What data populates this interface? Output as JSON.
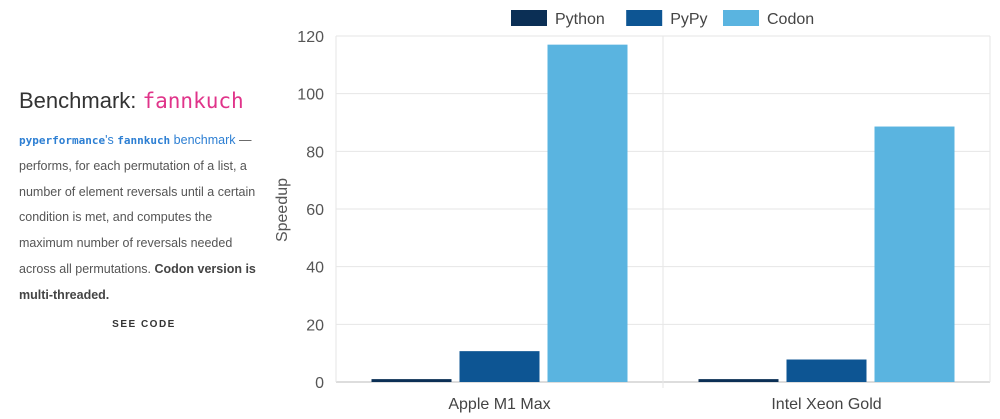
{
  "left_panel": {
    "title_prefix": "Benchmark: ",
    "title_code": "fannkuch",
    "desc_mono1": "pyperformance",
    "desc_text1": "'s ",
    "desc_mono2": "fannkuch",
    "desc_link": " benchmark",
    "desc_body": " — performs, for each permutation of a list, a number of element reversals until a certain condition is met, and computes the maximum number of reversals needed across all permutations. ",
    "desc_bold": "Codon version is multi-threaded.",
    "see_code": "SEE CODE"
  },
  "colors": {
    "Python": "#0b2f55",
    "PyPy": "#0d5593",
    "Codon": "#5ab4e0"
  },
  "chart_data": {
    "type": "bar",
    "title": "",
    "xlabel": "",
    "ylabel": "Speedup",
    "categories": [
      "Apple M1 Max",
      "Intel Xeon Gold"
    ],
    "series": [
      {
        "name": "Python",
        "values": [
          1,
          1
        ]
      },
      {
        "name": "PyPy",
        "values": [
          10.7,
          7.8
        ]
      },
      {
        "name": "Codon",
        "values": [
          117,
          88.6
        ]
      }
    ],
    "ylim": [
      0,
      120
    ],
    "yticks": [
      0,
      20,
      40,
      60,
      80,
      100,
      120
    ],
    "grid": true,
    "legend_position": "top"
  }
}
